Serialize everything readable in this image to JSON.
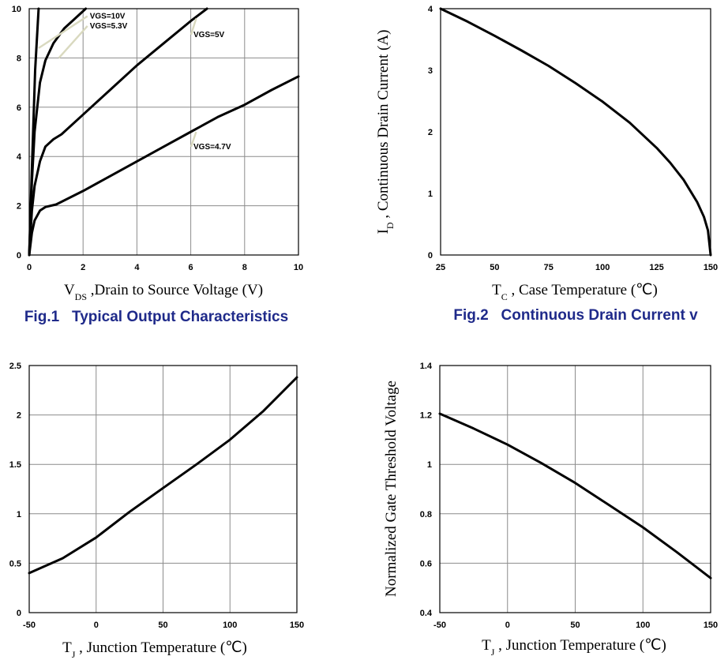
{
  "chart_data": [
    {
      "id": "fig1",
      "type": "line",
      "caption": "Fig.1   Typical Output Characteristics",
      "xlabel_main": "V",
      "xlabel_sub": "DS",
      "xlabel_rest": " ,Drain to Source Voltage (V)",
      "ylabel": "",
      "xlim": [
        0,
        10
      ],
      "ylim": [
        0,
        10
      ],
      "xticks": [
        "0",
        "2",
        "4",
        "6",
        "8",
        "10"
      ],
      "yticks": [
        "0",
        "2",
        "4",
        "6",
        "8",
        "10"
      ],
      "grid": true,
      "series": [
        {
          "name": "VGS=10V",
          "x": [
            0,
            0.1,
            0.22,
            0.35
          ],
          "y": [
            0,
            3.5,
            7.5,
            10
          ]
        },
        {
          "name": "VGS=5.3V",
          "x": [
            0,
            0.1,
            0.2,
            0.4,
            0.6,
            0.9,
            1.3,
            1.7,
            2.1
          ],
          "y": [
            0,
            3,
            5,
            7,
            7.9,
            8.6,
            9.2,
            9.6,
            10
          ]
        },
        {
          "name": "VGS=5V",
          "x": [
            0,
            0.1,
            0.2,
            0.4,
            0.6,
            0.9,
            1.2,
            2,
            3,
            4,
            5,
            6,
            6.6
          ],
          "y": [
            0,
            1.8,
            2.8,
            3.8,
            4.4,
            4.7,
            4.9,
            5.7,
            6.7,
            7.7,
            8.6,
            9.5,
            10
          ]
        },
        {
          "name": "VGS=4.7V",
          "x": [
            0,
            0.1,
            0.2,
            0.4,
            0.6,
            1,
            2,
            3,
            4,
            5,
            6,
            7,
            8,
            9,
            10
          ],
          "y": [
            0,
            0.9,
            1.4,
            1.8,
            1.95,
            2.05,
            2.6,
            3.2,
            3.8,
            4.4,
            5,
            5.6,
            6.1,
            6.7,
            7.25
          ]
        }
      ],
      "annotations": [
        {
          "text": "VGS=10V",
          "x": 2.25,
          "y": 9.6,
          "tx": 0.35,
          "ty": 8.4
        },
        {
          "text": "VGS=5.3V",
          "x": 2.25,
          "y": 9.2,
          "tx": 1.1,
          "ty": 8.0
        },
        {
          "text": "VGS=5V",
          "x": 6.1,
          "y": 8.85,
          "tx": 6.2,
          "ty": 9.6
        },
        {
          "text": "VGS=4.7V",
          "x": 6.1,
          "y": 4.3,
          "tx": 6.2,
          "ty": 5.0
        }
      ]
    },
    {
      "id": "fig2",
      "type": "line",
      "caption": "Fig.2   Continuous Drain Current v",
      "xlabel_main": "T",
      "xlabel_sub": "C",
      "xlabel_rest": " , Case Temperature (℃)",
      "ylabel_main": "I",
      "ylabel_sub": "D",
      "ylabel_rest": " , Continuous Drain Current (A)",
      "xlim": [
        25,
        150
      ],
      "ylim": [
        0,
        4
      ],
      "xticks": [
        "25",
        "50",
        "75",
        "100",
        "125",
        "150"
      ],
      "yticks": [
        "0",
        "1",
        "2",
        "3",
        "4"
      ],
      "grid": false,
      "series": [
        {
          "name": "ID",
          "x": [
            25,
            37.5,
            50,
            62.5,
            75,
            87.5,
            100,
            112.5,
            125,
            131.25,
            137.5,
            143.75,
            146.9,
            148.75,
            150
          ],
          "y": [
            4,
            3.79,
            3.56,
            3.32,
            3.07,
            2.79,
            2.49,
            2.15,
            1.74,
            1.5,
            1.22,
            0.86,
            0.62,
            0.4,
            0
          ]
        }
      ]
    },
    {
      "id": "fig3",
      "type": "line",
      "caption": "",
      "xlabel_main": "T",
      "xlabel_sub": "J",
      "xlabel_rest": " , Junction Temperature (℃)",
      "ylabel": "",
      "xlim": [
        -50,
        150
      ],
      "ylim": [
        0,
        2.5
      ],
      "xticks": [
        "-50",
        "0",
        "50",
        "100",
        "150"
      ],
      "yticks": [
        "0",
        "0.5",
        "1",
        "1.5",
        "2",
        "2.5"
      ],
      "grid": true,
      "series": [
        {
          "name": "curve",
          "x": [
            -50,
            -25,
            0,
            25,
            50,
            75,
            100,
            125,
            150
          ],
          "y": [
            0.4,
            0.55,
            0.76,
            1.02,
            1.26,
            1.5,
            1.75,
            2.04,
            2.38
          ]
        }
      ]
    },
    {
      "id": "fig4",
      "type": "line",
      "caption": "",
      "xlabel_main": "T",
      "xlabel_sub": "J",
      "xlabel_rest": " , Junction Temperature (℃)",
      "ylabel": "Normalized Gate Threshold Voltage",
      "xlim": [
        -50,
        150
      ],
      "ylim": [
        0.4,
        1.4
      ],
      "xticks": [
        "-50",
        "0",
        "50",
        "100",
        "150"
      ],
      "yticks": [
        "0.4",
        "0.6",
        "0.8",
        "1",
        "1.2",
        "1.4"
      ],
      "grid": true,
      "series": [
        {
          "name": "curve",
          "x": [
            -50,
            -25,
            0,
            25,
            50,
            75,
            100,
            125,
            150
          ],
          "y": [
            1.205,
            1.145,
            1.08,
            1.005,
            0.925,
            0.835,
            0.745,
            0.645,
            0.54
          ]
        }
      ]
    }
  ]
}
